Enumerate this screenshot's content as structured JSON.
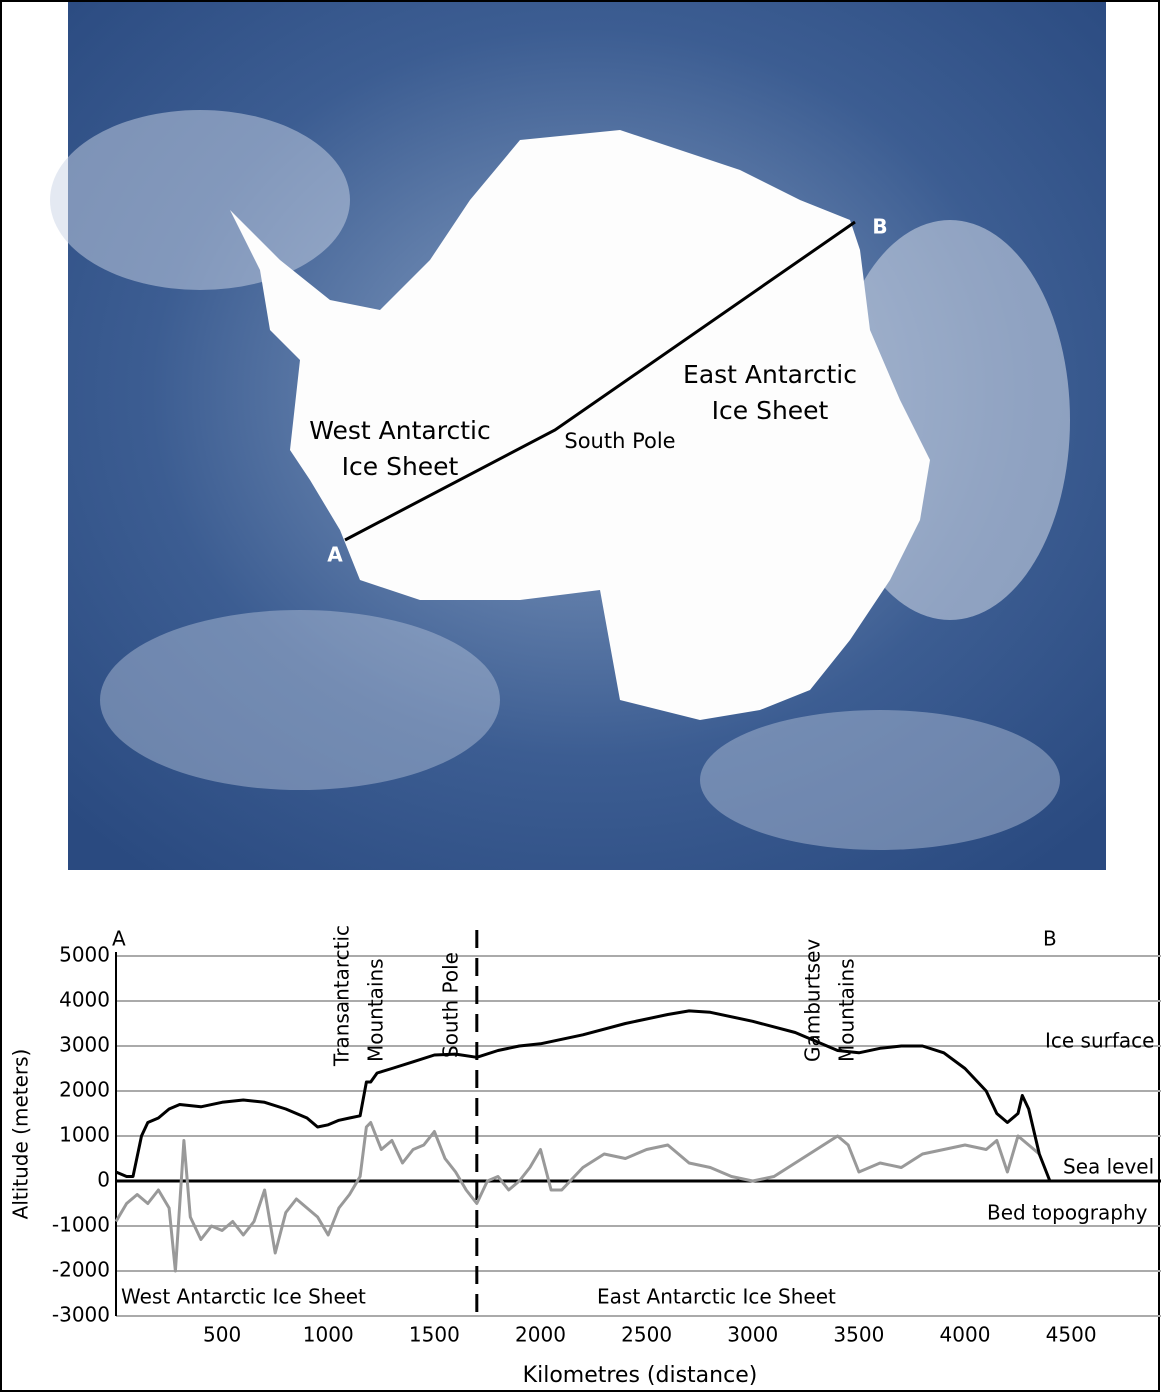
{
  "map": {
    "labels": {
      "west": [
        "West Antarctic",
        "Ice Sheet"
      ],
      "east": [
        "East Antarctic",
        "Ice Sheet"
      ],
      "pole": "South Pole",
      "a": "A",
      "b": "B"
    }
  },
  "chart_data": {
    "type": "line",
    "xlabel": "Kilometres (distance)",
    "ylabel": "Altitude (meters)",
    "xlim": [
      0,
      4900
    ],
    "xticks": [
      500,
      1000,
      1500,
      2000,
      2500,
      3000,
      3500,
      4000,
      4500
    ],
    "ylim": [
      -3000,
      5000
    ],
    "yticks": [
      -3000,
      -2000,
      -1000,
      0,
      1000,
      2000,
      3000,
      4000,
      5000
    ],
    "grid": true,
    "vline_x": 1700,
    "annotations": {
      "a": "A",
      "b": "B",
      "transantarctic": [
        "Transantarctic",
        "Mountains"
      ],
      "south_pole": "South Pole",
      "gamburtsev": [
        "Gamburtsev",
        "Mountains"
      ],
      "ice_surface": "Ice surface",
      "sea_level": "Sea level",
      "bed_topography": "Bed topography",
      "west": "West Antarctic Ice Sheet",
      "east": "East Antarctic Ice Sheet"
    },
    "series": [
      {
        "name": "Ice surface",
        "color": "#000000",
        "x": [
          0,
          50,
          80,
          120,
          150,
          200,
          250,
          300,
          400,
          500,
          600,
          700,
          800,
          900,
          950,
          1000,
          1050,
          1100,
          1150,
          1180,
          1200,
          1230,
          1300,
          1400,
          1500,
          1600,
          1700,
          1800,
          1900,
          2000,
          2200,
          2400,
          2600,
          2700,
          2800,
          3000,
          3200,
          3400,
          3500,
          3600,
          3700,
          3800,
          3900,
          4000,
          4100,
          4150,
          4200,
          4250,
          4270,
          4300,
          4350,
          4400
        ],
        "values": [
          200,
          100,
          100,
          1000,
          1300,
          1400,
          1600,
          1700,
          1650,
          1750,
          1800,
          1750,
          1600,
          1400,
          1200,
          1250,
          1350,
          1400,
          1450,
          2200,
          2200,
          2400,
          2500,
          2650,
          2800,
          2820,
          2750,
          2900,
          3000,
          3050,
          3250,
          3500,
          3700,
          3780,
          3750,
          3550,
          3300,
          2900,
          2850,
          2950,
          3000,
          3000,
          2850,
          2500,
          2000,
          1500,
          1300,
          1500,
          1900,
          1600,
          600,
          0
        ]
      },
      {
        "name": "Bed topography",
        "color": "#999999",
        "x": [
          0,
          50,
          100,
          150,
          200,
          250,
          280,
          320,
          350,
          400,
          450,
          500,
          550,
          600,
          650,
          700,
          750,
          800,
          850,
          900,
          950,
          1000,
          1050,
          1100,
          1150,
          1180,
          1200,
          1250,
          1300,
          1350,
          1400,
          1450,
          1500,
          1550,
          1600,
          1650,
          1700,
          1750,
          1800,
          1850,
          1900,
          1950,
          2000,
          2050,
          2100,
          2200,
          2300,
          2400,
          2500,
          2600,
          2700,
          2800,
          2900,
          3000,
          3100,
          3200,
          3300,
          3400,
          3450,
          3500,
          3600,
          3700,
          3800,
          3900,
          4000,
          4100,
          4150,
          4200,
          4250,
          4300,
          4350
        ],
        "values": [
          -900,
          -500,
          -300,
          -500,
          -200,
          -600,
          -2000,
          900,
          -800,
          -1300,
          -1000,
          -1100,
          -900,
          -1200,
          -900,
          -200,
          -1600,
          -700,
          -400,
          -600,
          -800,
          -1200,
          -600,
          -300,
          100,
          1200,
          1300,
          700,
          900,
          400,
          700,
          800,
          1100,
          500,
          200,
          -200,
          -500,
          0,
          100,
          -200,
          0,
          300,
          700,
          -200,
          -200,
          300,
          600,
          500,
          700,
          800,
          400,
          300,
          100,
          0,
          100,
          400,
          700,
          1000,
          800,
          200,
          400,
          300,
          600,
          700,
          800,
          700,
          900,
          200,
          1000,
          800,
          600
        ]
      }
    ]
  }
}
